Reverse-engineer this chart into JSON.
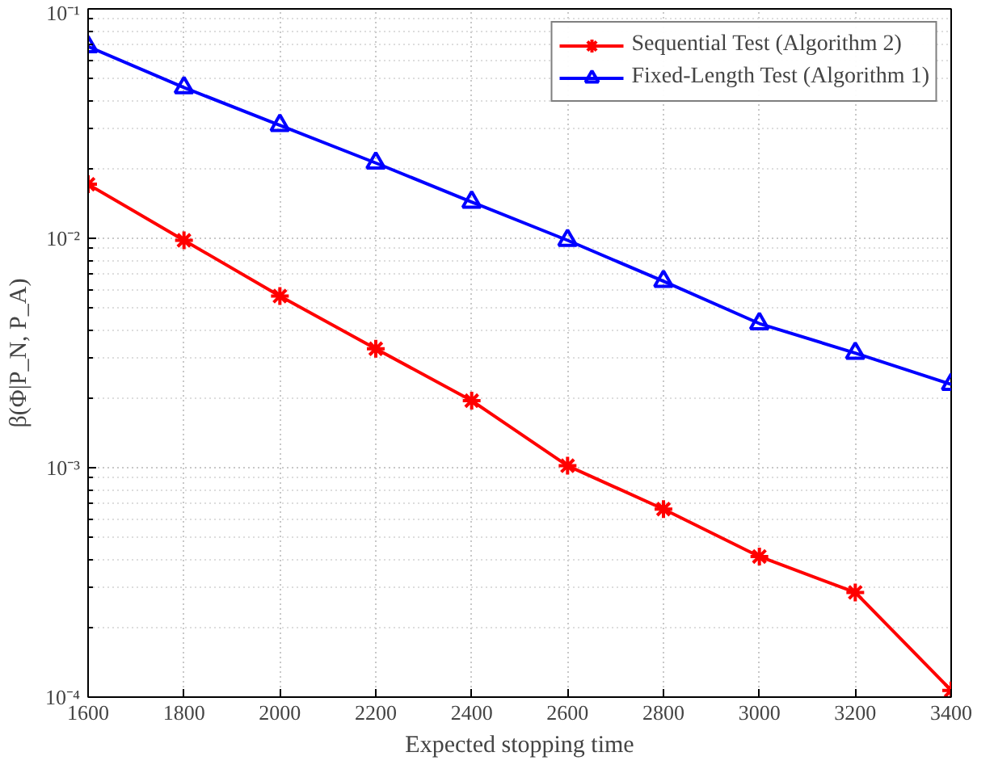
{
  "chart_data": {
    "type": "line",
    "xlabel": "Expected stopping time",
    "ylabel": "β(Φ|P_N, P_A)",
    "x": [
      1600,
      1800,
      2000,
      2200,
      2400,
      2600,
      2800,
      3000,
      3200,
      3400
    ],
    "series": [
      {
        "name": "Sequential Test (Algorithm 2)",
        "color": "#ff0000",
        "marker": "cross",
        "values": [
          0.0172,
          0.0098,
          0.0056,
          0.0033,
          0.00196,
          0.00102,
          0.00066,
          0.00041,
          0.000286,
          0.000107
        ]
      },
      {
        "name": "Fixed-Length Test (Algorithm 1)",
        "color": "#0000ff",
        "marker": "triangle",
        "values": [
          0.0685,
          0.0454,
          0.0311,
          0.0213,
          0.0144,
          0.0098,
          0.0065,
          0.00425,
          0.00316,
          0.00231
        ]
      }
    ],
    "log": "y",
    "grid": true,
    "legend": "top right",
    "line_style": "solid",
    "xlim": [
      1600,
      3400
    ],
    "xticks": [
      1600,
      1800,
      2000,
      2200,
      2400,
      2600,
      2800,
      3000,
      3200,
      3400
    ],
    "ylim": [
      0.0001,
      0.1
    ],
    "yticks": [
      {
        "value": 0.0001,
        "label": "10⁻⁴"
      },
      {
        "value": 0.001,
        "label": "10⁻³"
      },
      {
        "value": 0.01,
        "label": "10⁻²"
      },
      {
        "value": 0.1,
        "label": "10⁻¹"
      }
    ]
  }
}
